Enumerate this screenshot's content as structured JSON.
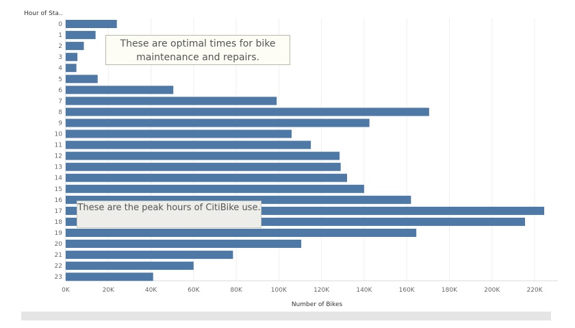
{
  "chart_data": {
    "type": "bar",
    "orientation": "horizontal",
    "y_header": "Hour of Sta..",
    "xlabel": "Number of Bikes",
    "categories": [
      "0",
      "1",
      "2",
      "3",
      "4",
      "5",
      "6",
      "7",
      "8",
      "9",
      "10",
      "11",
      "12",
      "13",
      "14",
      "15",
      "16",
      "17",
      "18",
      "19",
      "20",
      "21",
      "22",
      "23"
    ],
    "values": [
      24000,
      14000,
      8500,
      5500,
      5000,
      15000,
      50500,
      99000,
      170500,
      142500,
      106000,
      115000,
      128500,
      129000,
      132000,
      140000,
      162000,
      224500,
      215500,
      164500,
      110500,
      78500,
      60000,
      41000
    ],
    "xlim": [
      0,
      226000
    ],
    "x_ticks": [
      "0K",
      "20K",
      "40K",
      "60K",
      "80K",
      "100K",
      "120K",
      "140K",
      "160K",
      "180K",
      "200K",
      "220K"
    ],
    "x_tick_values": [
      0,
      20000,
      40000,
      60000,
      80000,
      100000,
      120000,
      140000,
      160000,
      180000,
      200000,
      220000
    ],
    "grid": true,
    "bar_color": "#4e79a7",
    "grid_color": "#efefef",
    "annotations": [
      {
        "text": "These are optimal times for bike maintenance and repairs."
      },
      {
        "text": "These are the peak hours of CitiBike use."
      }
    ]
  }
}
